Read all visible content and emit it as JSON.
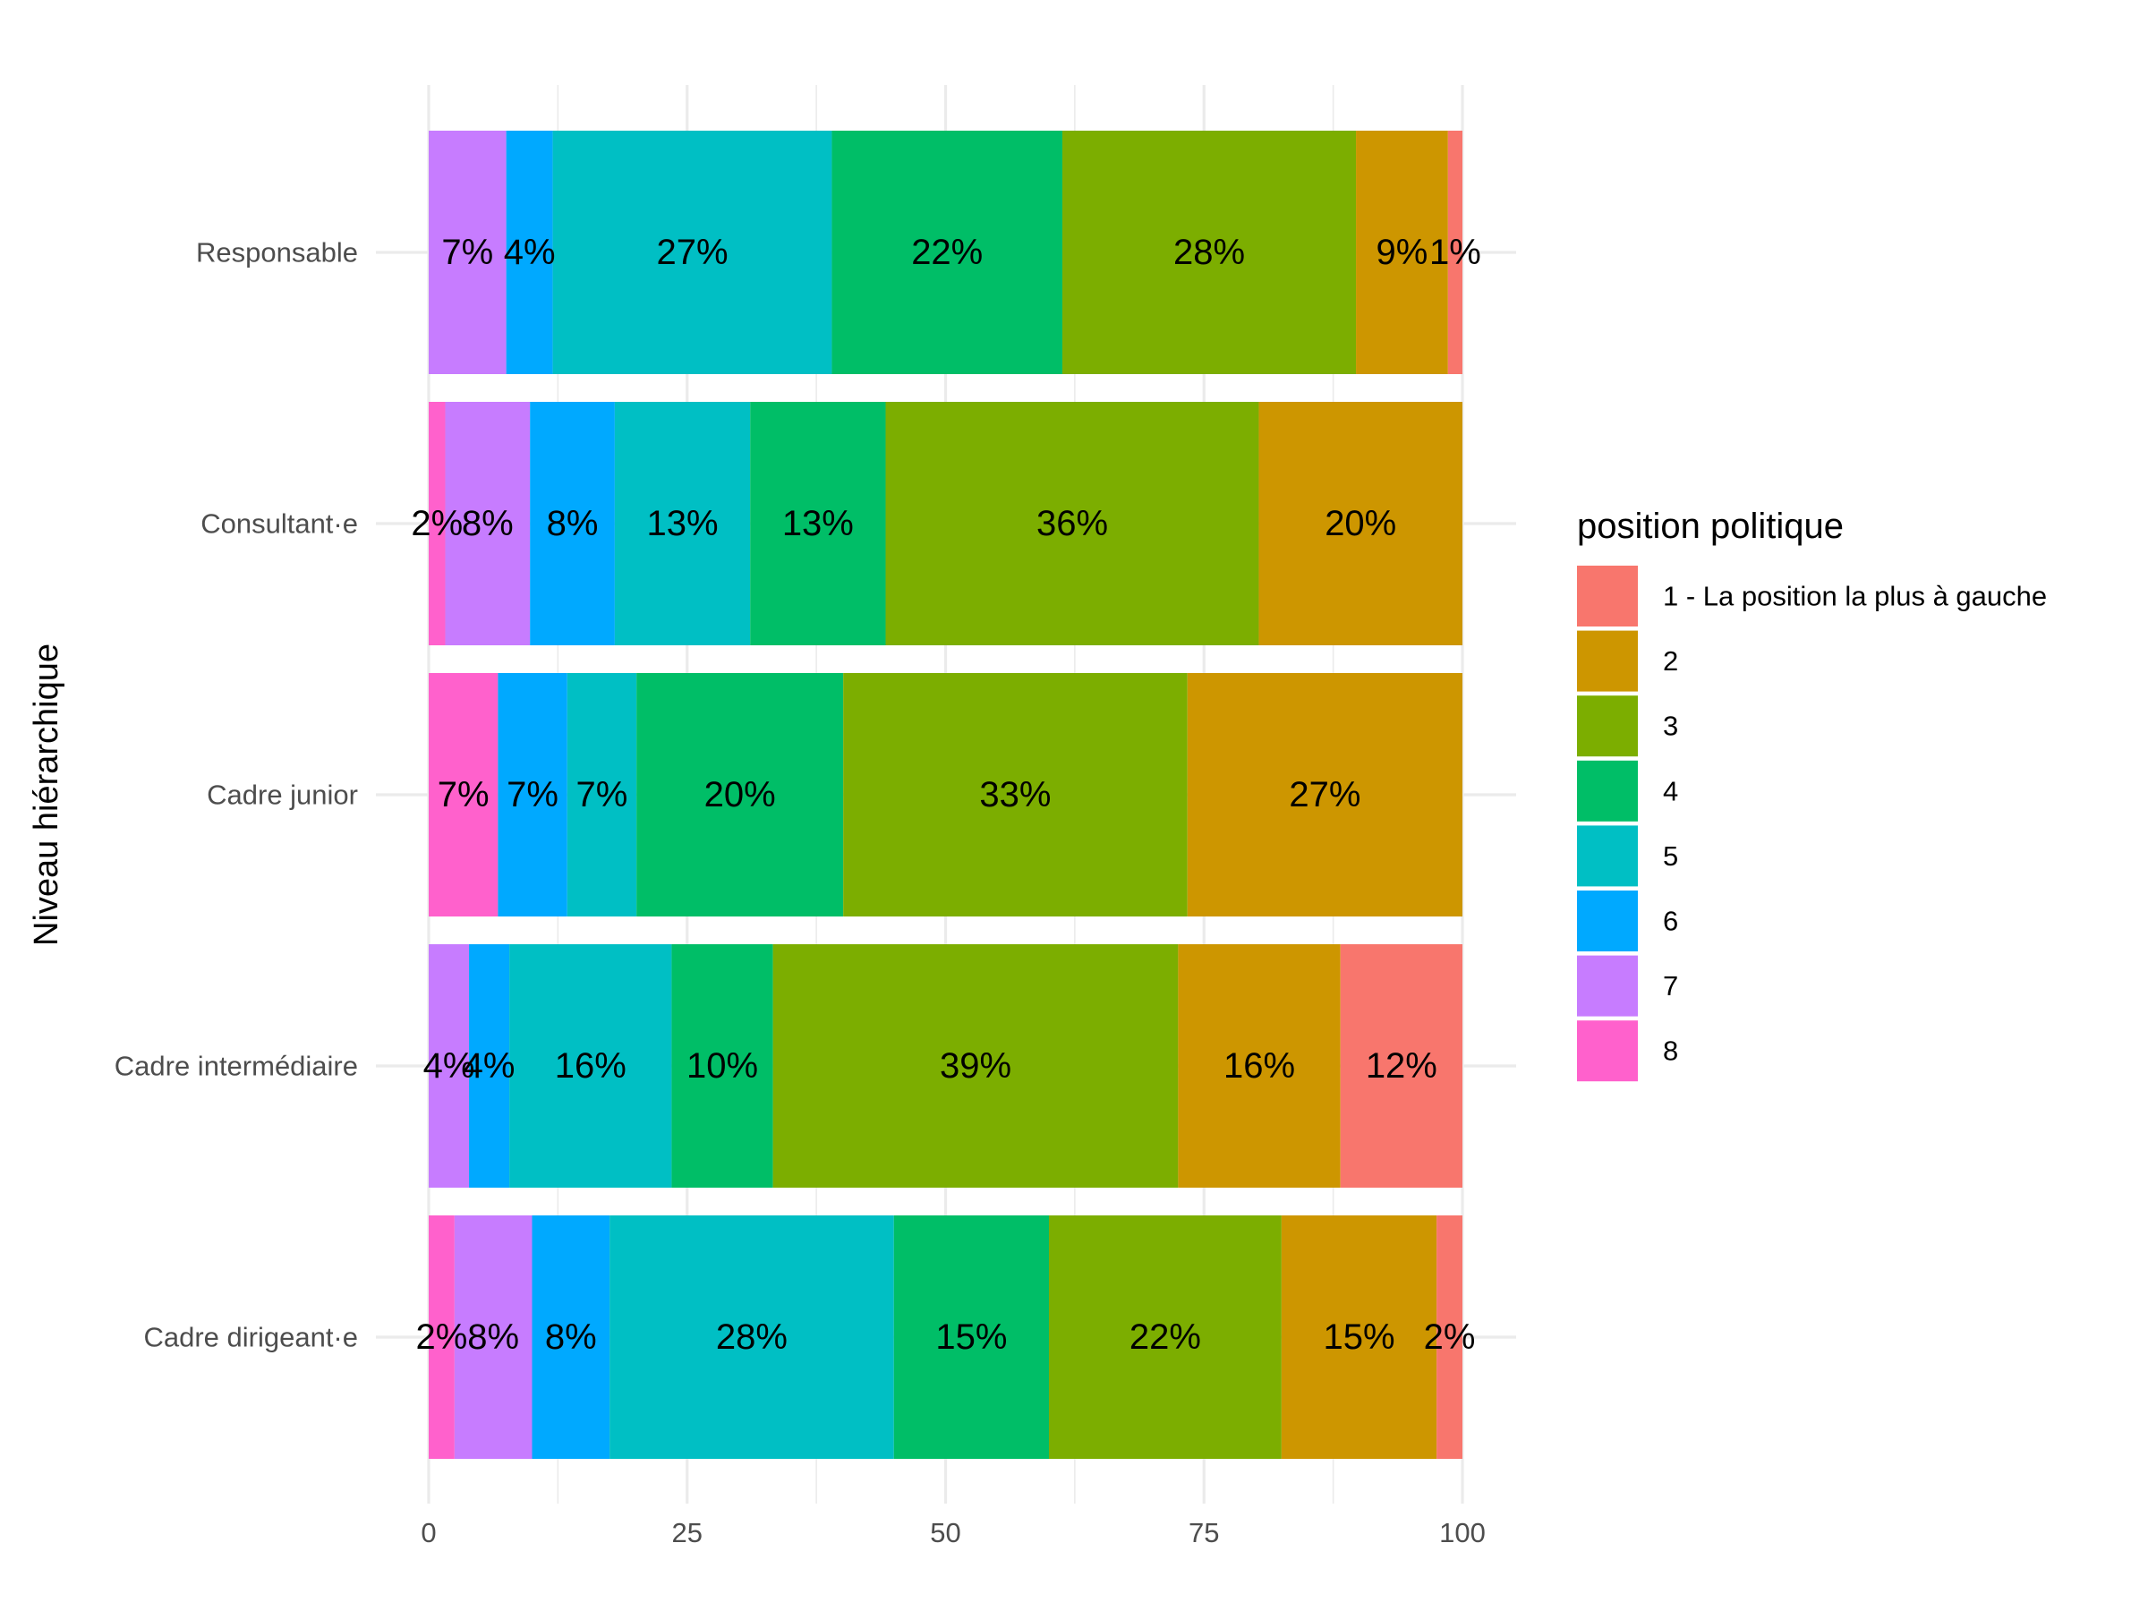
{
  "chart_data": {
    "type": "bar",
    "orientation": "horizontal",
    "stacked": true,
    "ylabel": "Niveau hiérarchique",
    "xlabel": "",
    "xlim": [
      0,
      100
    ],
    "x_ticks": [
      0,
      25,
      50,
      75,
      100
    ],
    "grid": true,
    "legend_position": "right",
    "legend_title": "position politique",
    "legend_entries": [
      "1 - La position la plus à gauche",
      "2",
      "3",
      "4",
      "5",
      "6",
      "7",
      "8"
    ],
    "series_colors": [
      "#F8766D",
      "#CD9600",
      "#7CAE00",
      "#00BE67",
      "#00BFC4",
      "#00A9FF",
      "#C77CFF",
      "#FF61CC"
    ],
    "stack_order_left_to_right": [
      "8",
      "7",
      "6",
      "5",
      "4",
      "3",
      "2",
      "1 - La position la plus à gauche"
    ],
    "categories": [
      "Responsable",
      "Consultant·e",
      "Cadre junior",
      "Cadre intermédiaire",
      "Cadre dirigeant·e"
    ],
    "rows": [
      {
        "category": "Responsable",
        "segments": [
          {
            "series": "8",
            "value": 0,
            "label": ""
          },
          {
            "series": "7",
            "value": 7.5,
            "label": "7%"
          },
          {
            "series": "6",
            "value": 4.5,
            "label": "4%"
          },
          {
            "series": "5",
            "value": 27,
            "label": "27%"
          },
          {
            "series": "4",
            "value": 22.3,
            "label": "22%"
          },
          {
            "series": "3",
            "value": 28.4,
            "label": "28%"
          },
          {
            "series": "2",
            "value": 8.9,
            "label": "9%"
          },
          {
            "series": "1 - La position la plus à gauche",
            "value": 1.4,
            "label": "1%"
          }
        ]
      },
      {
        "category": "Consultant·e",
        "segments": [
          {
            "series": "8",
            "value": 1.6,
            "label": "2%"
          },
          {
            "series": "7",
            "value": 8.2,
            "label": "8%"
          },
          {
            "series": "6",
            "value": 8.2,
            "label": "8%"
          },
          {
            "series": "5",
            "value": 13.1,
            "label": "13%"
          },
          {
            "series": "4",
            "value": 13.1,
            "label": "13%"
          },
          {
            "series": "3",
            "value": 36.1,
            "label": "36%"
          },
          {
            "series": "2",
            "value": 19.7,
            "label": "20%"
          },
          {
            "series": "1 - La position la plus à gauche",
            "value": 0,
            "label": ""
          }
        ]
      },
      {
        "category": "Cadre junior",
        "segments": [
          {
            "series": "8",
            "value": 6.7,
            "label": "7%"
          },
          {
            "series": "7",
            "value": 0,
            "label": ""
          },
          {
            "series": "6",
            "value": 6.7,
            "label": "7%"
          },
          {
            "series": "5",
            "value": 6.7,
            "label": "7%"
          },
          {
            "series": "4",
            "value": 20,
            "label": "20%"
          },
          {
            "series": "3",
            "value": 33.3,
            "label": "33%"
          },
          {
            "series": "2",
            "value": 26.6,
            "label": "27%"
          },
          {
            "series": "1 - La position la plus à gauche",
            "value": 0,
            "label": ""
          }
        ]
      },
      {
        "category": "Cadre intermédiaire",
        "segments": [
          {
            "series": "8",
            "value": 0,
            "label": ""
          },
          {
            "series": "7",
            "value": 3.9,
            "label": "4%"
          },
          {
            "series": "6",
            "value": 3.9,
            "label": "4%"
          },
          {
            "series": "5",
            "value": 15.7,
            "label": "16%"
          },
          {
            "series": "4",
            "value": 9.8,
            "label": "10%"
          },
          {
            "series": "3",
            "value": 39.2,
            "label": "39%"
          },
          {
            "series": "2",
            "value": 15.7,
            "label": "16%"
          },
          {
            "series": "1 - La position la plus à gauche",
            "value": 11.8,
            "label": "12%"
          }
        ]
      },
      {
        "category": "Cadre dirigeant·e",
        "segments": [
          {
            "series": "8",
            "value": 2.5,
            "label": "2%"
          },
          {
            "series": "7",
            "value": 7.5,
            "label": "8%"
          },
          {
            "series": "6",
            "value": 7.5,
            "label": "8%"
          },
          {
            "series": "5",
            "value": 27.5,
            "label": "28%"
          },
          {
            "series": "4",
            "value": 15,
            "label": "15%"
          },
          {
            "series": "3",
            "value": 22.5,
            "label": "22%"
          },
          {
            "series": "2",
            "value": 15,
            "label": "15%"
          },
          {
            "series": "1 - La position la plus à gauche",
            "value": 2.5,
            "label": "2%"
          }
        ]
      }
    ]
  }
}
